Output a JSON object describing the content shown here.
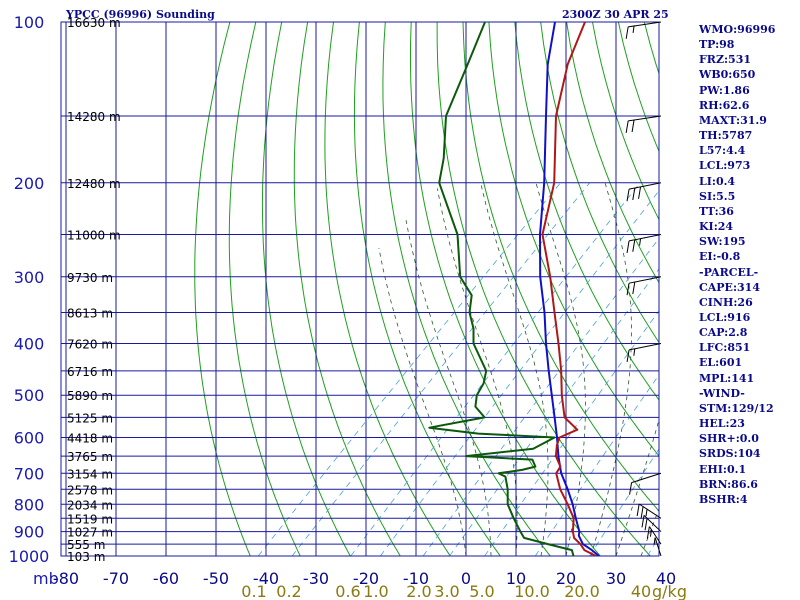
{
  "header": {
    "station": "YPCC (96996) Sounding",
    "time": "2300Z 30 APR 25"
  },
  "stats": [
    "WMO:96996",
    "TP:98",
    "FRZ:531",
    "WB0:650",
    "PW:1.86",
    "RH:62.6",
    "MAXT:31.9",
    "TH:5787",
    "L57:4.4",
    "LCL:973",
    "LI:0.4",
    "SI:5.5",
    "TT:36",
    "KI:24",
    "SW:195",
    "EI:-0.8",
    "-PARCEL-",
    "CAPE:314",
    "CINH:26",
    "LCL:916",
    "CAP:2.8",
    "LFC:851",
    "EL:601",
    "MPL:141",
    "-WIND-",
    "STM:129/12",
    "HEL:23",
    "SHR+:0.0",
    "SRDS:104",
    "EHI:0.1",
    "BRN:86.6",
    "BSHR:4"
  ],
  "colors": {
    "grid": "#1a1aa0",
    "dry_adiabat": "#1ea01e",
    "moist_adiabat": "#2a5a2a",
    "mixing_ratio": "#4aa0e0",
    "temperature": "#b01818",
    "dewpoint": "#0a5a0a",
    "parcel": "#1010c8",
    "pressure_label": "#1a1ab0",
    "temp_label": "#0a0a8a",
    "mixing_label": "#8a7a10",
    "height_label": "#000000"
  },
  "chart_data": {
    "type": "line",
    "title": "YPCC (96996) Sounding",
    "pressure_levels": [
      100,
      200,
      300,
      400,
      500,
      600,
      700,
      800,
      900,
      1000
    ],
    "pressure_tick_labels": [
      "100",
      "200",
      "300",
      "400",
      "500",
      "600",
      "700",
      "800",
      "900",
      "1000"
    ],
    "pressure_unit": "mb",
    "temperature_ticks": [
      -80,
      -70,
      -60,
      -50,
      -40,
      -30,
      -20,
      -10,
      0,
      10,
      20,
      30,
      40
    ],
    "temperature_tick_labels": [
      "-80",
      "-70",
      "-60",
      "-50",
      "-40",
      "-30",
      "-20",
      "-10",
      "0",
      "10",
      "20",
      "30",
      "40"
    ],
    "temperature_range": [
      -80,
      40
    ],
    "mixing_ratio_labels": [
      {
        "value": 0.1,
        "label": "0.1"
      },
      {
        "value": 0.2,
        "label": "0.2"
      },
      {
        "value": 0.6,
        "label": "0.6"
      },
      {
        "value": 1.0,
        "label": "1.0"
      },
      {
        "value": 2.0,
        "label": "2.0"
      },
      {
        "value": 3.0,
        "label": "3.0"
      },
      {
        "value": 5.0,
        "label": "5.0"
      },
      {
        "value": 10.0,
        "label": "10.0"
      },
      {
        "value": 20.0,
        "label": "20.0"
      },
      {
        "value": 40.0,
        "label": "40"
      }
    ],
    "mixing_ratio_unit": "g/kg",
    "height_labels": [
      {
        "p": 100,
        "label": "16630 m"
      },
      {
        "p": 150,
        "label": "14280 m"
      },
      {
        "p": 200,
        "label": "12480 m"
      },
      {
        "p": 250,
        "label": "11000 m"
      },
      {
        "p": 300,
        "label": "9730 m"
      },
      {
        "p": 350,
        "label": "8613 m"
      },
      {
        "p": 400,
        "label": "7620 m"
      },
      {
        "p": 450,
        "label": "6716 m"
      },
      {
        "p": 500,
        "label": "5890 m"
      },
      {
        "p": 550,
        "label": "5125 m"
      },
      {
        "p": 600,
        "label": "4418 m"
      },
      {
        "p": 650,
        "label": "3765 m"
      },
      {
        "p": 700,
        "label": "3154 m"
      },
      {
        "p": 750,
        "label": "2578 m"
      },
      {
        "p": 800,
        "label": "2034 m"
      },
      {
        "p": 850,
        "label": "1519 m"
      },
      {
        "p": 900,
        "label": "1027 m"
      },
      {
        "p": 950,
        "label": "555 m"
      },
      {
        "p": 1000,
        "label": "103 m"
      }
    ],
    "series": [
      {
        "key": "temperature",
        "points": [
          [
            1000,
            26
          ],
          [
            975,
            22.5
          ],
          [
            950,
            20.5
          ],
          [
            925,
            18
          ],
          [
            900,
            16.5
          ],
          [
            850,
            14
          ],
          [
            800,
            10
          ],
          [
            750,
            5.5
          ],
          [
            700,
            1.5
          ],
          [
            680,
            1
          ],
          [
            650,
            -2
          ],
          [
            620,
            -4
          ],
          [
            600,
            -5
          ],
          [
            580,
            -3
          ],
          [
            550,
            -8
          ],
          [
            500,
            -13
          ],
          [
            450,
            -18
          ],
          [
            400,
            -24
          ],
          [
            350,
            -31
          ],
          [
            300,
            -39
          ],
          [
            250,
            -49
          ],
          [
            200,
            -57
          ],
          [
            150,
            -70
          ],
          [
            120,
            -78
          ],
          [
            100,
            -83
          ]
        ]
      },
      {
        "key": "dewpoint",
        "points": [
          [
            1000,
            21.5
          ],
          [
            975,
            20
          ],
          [
            950,
            14
          ],
          [
            925,
            8
          ],
          [
            900,
            6
          ],
          [
            850,
            2
          ],
          [
            800,
            -2
          ],
          [
            750,
            -5
          ],
          [
            710,
            -8
          ],
          [
            700,
            -10
          ],
          [
            690,
            -6
          ],
          [
            680,
            -4
          ],
          [
            660,
            -6
          ],
          [
            650,
            -20
          ],
          [
            630,
            -8
          ],
          [
            600,
            -6
          ],
          [
            590,
            -22
          ],
          [
            575,
            -33
          ],
          [
            550,
            -24
          ],
          [
            525,
            -28
          ],
          [
            500,
            -30
          ],
          [
            475,
            -31
          ],
          [
            450,
            -33
          ],
          [
            400,
            -41
          ],
          [
            375,
            -44
          ],
          [
            350,
            -48
          ],
          [
            325,
            -51
          ],
          [
            300,
            -57
          ],
          [
            250,
            -66
          ],
          [
            200,
            -80
          ],
          [
            180,
            -84
          ],
          [
            150,
            -92
          ],
          [
            120,
            -98
          ],
          [
            100,
            -103
          ]
        ]
      },
      {
        "key": "parcel",
        "points": [
          [
            1000,
            26.6
          ],
          [
            975,
            24
          ],
          [
            950,
            21
          ],
          [
            916,
            18.5
          ],
          [
            900,
            17.8
          ],
          [
            851,
            14.5
          ],
          [
            800,
            11
          ],
          [
            750,
            7
          ],
          [
            700,
            2.5
          ],
          [
            650,
            -1.5
          ],
          [
            600,
            -5.5
          ],
          [
            550,
            -10
          ],
          [
            500,
            -15
          ],
          [
            450,
            -20.5
          ],
          [
            400,
            -26.5
          ],
          [
            350,
            -33
          ],
          [
            300,
            -41
          ],
          [
            250,
            -49.5
          ],
          [
            200,
            -59
          ],
          [
            150,
            -72
          ],
          [
            120,
            -82
          ],
          [
            100,
            -89
          ]
        ]
      }
    ],
    "dry_adiabats_theta_K": [
      230,
      240,
      250,
      260,
      270,
      280,
      290,
      300,
      310,
      320,
      330,
      340,
      350,
      360,
      370,
      380,
      390,
      400,
      410,
      420,
      430,
      440,
      450
    ],
    "moist_adiabats_start_temp_C": [
      0,
      5,
      10,
      15,
      20,
      25,
      30,
      35
    ],
    "mixing_ratio_lines_gkg": [
      0.1,
      0.2,
      0.6,
      1.0,
      2.0,
      3.0,
      5.0,
      10.0,
      20.0,
      40.0
    ],
    "wind_barbs": [
      {
        "p": 100,
        "dir": 255,
        "spd": 15
      },
      {
        "p": 150,
        "dir": 255,
        "spd": 20
      },
      {
        "p": 200,
        "dir": 250,
        "spd": 30
      },
      {
        "p": 250,
        "dir": 250,
        "spd": 25
      },
      {
        "p": 300,
        "dir": 250,
        "spd": 20
      },
      {
        "p": 400,
        "dir": 250,
        "spd": 15
      },
      {
        "p": 700,
        "dir": 240,
        "spd": 10
      },
      {
        "p": 850,
        "dir": 320,
        "spd": 25
      },
      {
        "p": 900,
        "dir": 330,
        "spd": 20
      },
      {
        "p": 950,
        "dir": 340,
        "spd": 15
      },
      {
        "p": 1000,
        "dir": 350,
        "spd": 5
      }
    ]
  }
}
